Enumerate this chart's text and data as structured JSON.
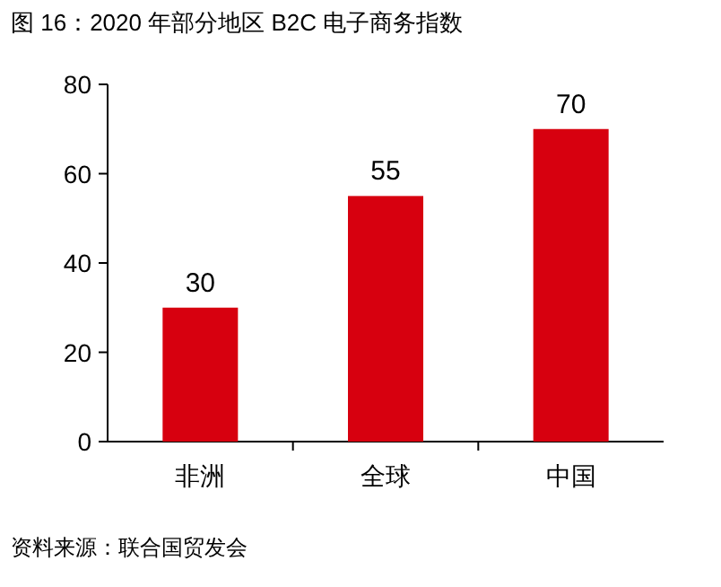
{
  "chart_data": {
    "type": "bar",
    "title": "图 16：2020 年部分地区 B2C 电子商务指数",
    "categories": [
      "非洲",
      "全球",
      "中国"
    ],
    "values": [
      30,
      55,
      70
    ],
    "color": "#d7000f",
    "ylim": [
      0,
      80
    ],
    "yticks": [
      0,
      20,
      40,
      60,
      80
    ],
    "data_labels": true,
    "annotations": [
      "资料来源：联合国贸发会"
    ]
  }
}
